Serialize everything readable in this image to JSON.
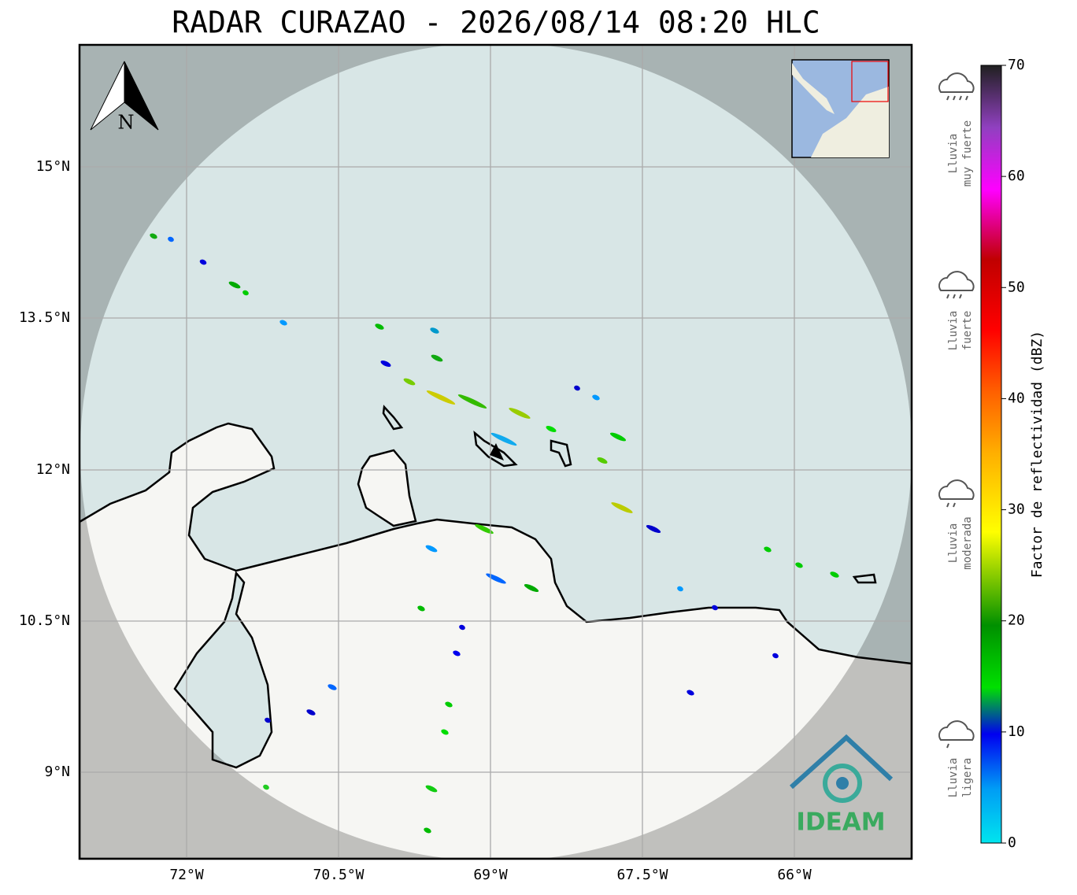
{
  "title": "RADAR CURAZAO - 2026/08/14 08:20 HLC",
  "north_label": "N",
  "lat_labels": [
    "15°N",
    "13.5°N",
    "12°N",
    "10.5°N",
    "9°N"
  ],
  "lon_labels": [
    "72°W",
    "70.5°W",
    "69°W",
    "67.5°W",
    "66°W"
  ],
  "colorbar": {
    "label": "Factor de reflectividad (dBZ)",
    "range": [
      0,
      70
    ],
    "ticks": [
      0,
      10,
      20,
      30,
      40,
      50,
      60,
      70
    ]
  },
  "rain_legend": [
    {
      "lines": [
        "Lluvia",
        "muy fuerte"
      ]
    },
    {
      "lines": [
        "Lluvia",
        "fuerte"
      ]
    },
    {
      "lines": [
        "Lluvia",
        "moderada"
      ]
    },
    {
      "lines": [
        "Lluvia",
        "ligera"
      ]
    }
  ],
  "logo": "IDEAM"
}
